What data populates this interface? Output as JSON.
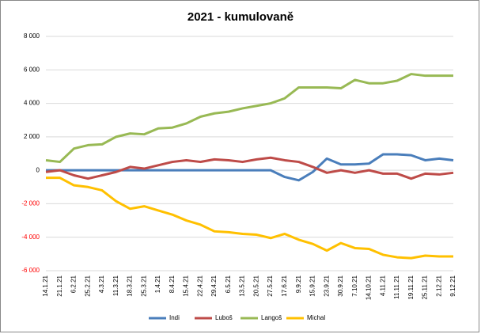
{
  "chart_data": {
    "type": "line",
    "title": "2021 - kumulovaně",
    "categories": [
      "14.1.21",
      "21.1.21",
      "6.2.21",
      "25.2.21",
      "4.3.21",
      "11.3.21",
      "18.3.21",
      "25.3.21",
      "1.4.21",
      "8.4.21",
      "15.4.21",
      "22.4.21",
      "29.4.21",
      "6.5.21",
      "13.5.21",
      "20.5.21",
      "27.5.21",
      "17.6.21",
      "9.9.21",
      "15.9.21",
      "23.9.21",
      "30.9.21",
      "7.10.21",
      "14.10.21",
      "4.11.21",
      "11.11.21",
      "19.11.21",
      "25.11.21",
      "2.12.21",
      "9.12.21"
    ],
    "series": [
      {
        "name": "Indi",
        "color": "#4a7ebb",
        "values": [
          0,
          0,
          0,
          0,
          0,
          0,
          0,
          0,
          0,
          0,
          0,
          0,
          0,
          0,
          0,
          0,
          0,
          -400,
          -600,
          -100,
          700,
          350,
          350,
          400,
          950,
          950,
          900,
          600,
          700,
          600
        ]
      },
      {
        "name": "Luboš",
        "color": "#be4b48",
        "values": [
          -100,
          0,
          -300,
          -500,
          -300,
          -100,
          200,
          100,
          300,
          500,
          600,
          500,
          650,
          600,
          500,
          650,
          750,
          600,
          500,
          200,
          -150,
          0,
          -150,
          0,
          -200,
          -200,
          -500,
          -200,
          -250,
          -150
        ]
      },
      {
        "name": "Langoš",
        "color": "#98b954",
        "values": [
          600,
          500,
          1300,
          1500,
          1550,
          2000,
          2200,
          2150,
          2500,
          2550,
          2800,
          3200,
          3400,
          3500,
          3700,
          3850,
          4000,
          4300,
          4950,
          4950,
          4950,
          4900,
          5400,
          5200,
          5200,
          5350,
          5750,
          5650,
          5650,
          5650
        ]
      },
      {
        "name": "Michal",
        "color": "#ffc000",
        "values": [
          -450,
          -450,
          -900,
          -1000,
          -1200,
          -1850,
          -2300,
          -2150,
          -2400,
          -2650,
          -3000,
          -3250,
          -3650,
          -3700,
          -3800,
          -3850,
          -4050,
          -3800,
          -4150,
          -4400,
          -4800,
          -4350,
          -4650,
          -4700,
          -5050,
          -5200,
          -5250,
          -5100,
          -5150,
          -5150
        ]
      }
    ],
    "ylim": [
      -6000,
      8000
    ],
    "yticks": [
      {
        "value": -6000,
        "label": "-6 000"
      },
      {
        "value": -4000,
        "label": "-4 000"
      },
      {
        "value": -2000,
        "label": "-2 000"
      },
      0,
      {
        "value": 2000,
        "label": "2 000"
      },
      {
        "value": 4000,
        "label": "4 000"
      },
      {
        "value": 6000,
        "label": "6 000"
      },
      {
        "value": 8000,
        "label": "8 000"
      }
    ],
    "grid": true,
    "legend": "bottom",
    "negative_tick_color": "#ff0000"
  }
}
